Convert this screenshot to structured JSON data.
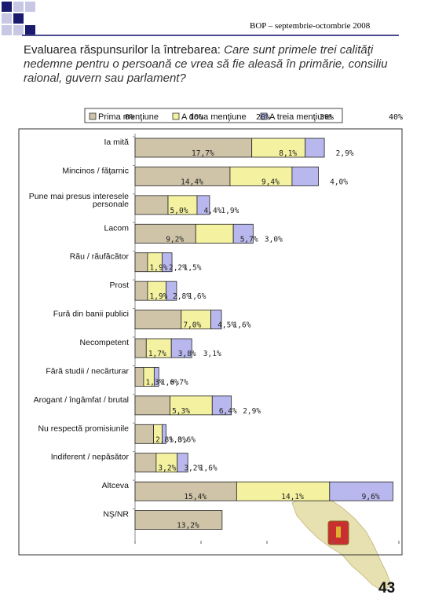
{
  "header": {
    "label": "BOP – septembrie-octombrie 2008"
  },
  "title": {
    "lead": "Evaluarea răspunsurilor la întrebarea: ",
    "question": "Care sunt primele trei calităţi nedemne pentru o persoană ce vrea să fie aleasă în primărie, consiliu raional, guvern sau parlament?"
  },
  "page_number": "43",
  "colors": {
    "series1": "#cfc4a8",
    "series2": "#f4f2a0",
    "series3": "#b8b8ee",
    "border": "#222222",
    "navy": "#1a1a6e"
  },
  "chart_data": {
    "type": "bar",
    "stacked": true,
    "orientation": "horizontal",
    "legend_position": "top",
    "series": [
      {
        "name": "Prima menţiune",
        "color": "#cfc4a8",
        "values": [
          17.7,
          14.4,
          5.0,
          9.2,
          1.9,
          1.9,
          7.0,
          1.7,
          1.3,
          5.3,
          2.8,
          3.2,
          15.4,
          13.2
        ]
      },
      {
        "name": "A doua menţiune",
        "color": "#f4f2a0",
        "values": [
          8.1,
          9.4,
          4.4,
          5.7,
          2.2,
          2.8,
          4.5,
          3.8,
          1.6,
          6.4,
          1.3,
          3.2,
          14.1,
          null
        ]
      },
      {
        "name": "A treia menţiune",
        "color": "#b8b8ee",
        "values": [
          2.9,
          4.0,
          1.9,
          3.0,
          1.5,
          1.6,
          1.6,
          3.1,
          0.7,
          2.9,
          0.6,
          1.6,
          9.6,
          null
        ]
      }
    ],
    "categories": [
      "Ia mită",
      "Mincinos / făţarnic",
      "Pune mai presus interesele personale",
      "Lacom",
      "Rău / răufăcător",
      "Prost",
      "Fură din banii publici",
      "Necompetent",
      "Fără studii / necărturar",
      "Arogant / îngâmfat / brutal",
      "Nu respectă promisiunile",
      "Indiferent / nepăsător",
      "Altceva",
      "NŞ/NR"
    ],
    "data_labels": [
      [
        "17,7%",
        "8,1%",
        "2,9%"
      ],
      [
        "14,4%",
        "9,4%",
        "4,0%"
      ],
      [
        "5,0%",
        "4,4%",
        "1,9%"
      ],
      [
        "9,2%",
        "5,7%",
        "3,0%"
      ],
      [
        "1,9%",
        "2,2%",
        "1,5%"
      ],
      [
        "1,9%",
        "2,8%",
        "1,6%"
      ],
      [
        "7,0%",
        "4,5%",
        "1,6%"
      ],
      [
        "1,7%",
        "3,8%",
        "3,1%"
      ],
      [
        "1,3%",
        "1,6%",
        "0,7%"
      ],
      [
        "5,3%",
        "6,4%",
        "2,9%"
      ],
      [
        "2,8%",
        "1,3%",
        "0,6%"
      ],
      [
        "3,2%",
        "3,2%",
        "1,6%"
      ],
      [
        "15,4%",
        "14,1%",
        "9,6%"
      ],
      [
        "13,2%",
        "",
        ""
      ]
    ],
    "x_ticks": [
      "0%",
      "10%",
      "20%",
      "30%",
      "40%"
    ],
    "xlim": [
      0,
      40
    ]
  }
}
